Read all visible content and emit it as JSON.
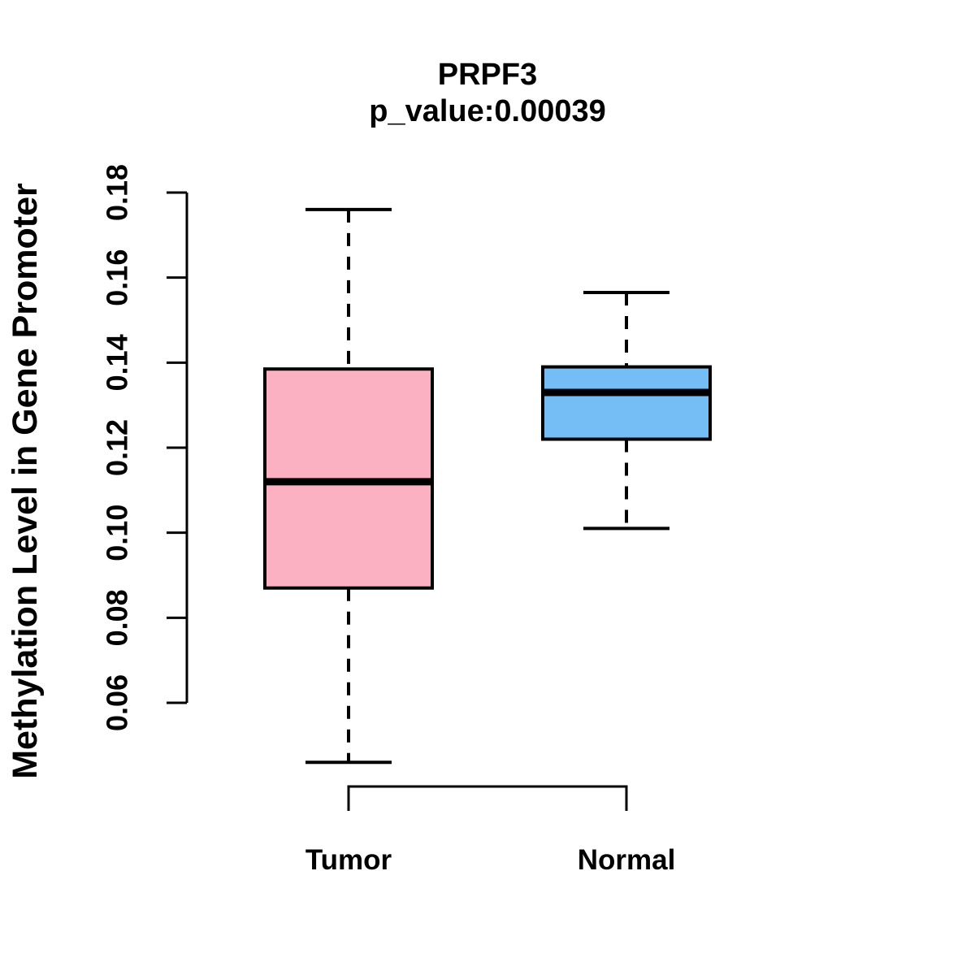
{
  "chart_data": {
    "type": "boxplot",
    "title": "PRPF3",
    "subtitle": "p_value:0.00039",
    "xlabel": "",
    "ylabel": "Methylation Level in Gene Promoter",
    "categories": [
      "Tumor",
      "Normal"
    ],
    "yticks": [
      0.06,
      0.08,
      0.1,
      0.12,
      0.14,
      0.16,
      0.18
    ],
    "ytick_labels": [
      "0.06",
      "0.08",
      "0.10",
      "0.12",
      "0.14",
      "0.16",
      "0.18"
    ],
    "ylim": [
      0.06,
      0.18
    ],
    "grid": false,
    "legend": "none",
    "boxes": [
      {
        "category": "Tumor",
        "color": "#FCB1C3",
        "whisker_low": 0.046,
        "q1": 0.087,
        "median": 0.112,
        "q3": 0.1385,
        "whisker_high": 0.176,
        "outliers": []
      },
      {
        "category": "Normal",
        "color": "#74BDF5",
        "whisker_low": 0.101,
        "q1": 0.122,
        "median": 0.133,
        "q3": 0.139,
        "whisker_high": 0.1565,
        "outliers": []
      }
    ]
  }
}
